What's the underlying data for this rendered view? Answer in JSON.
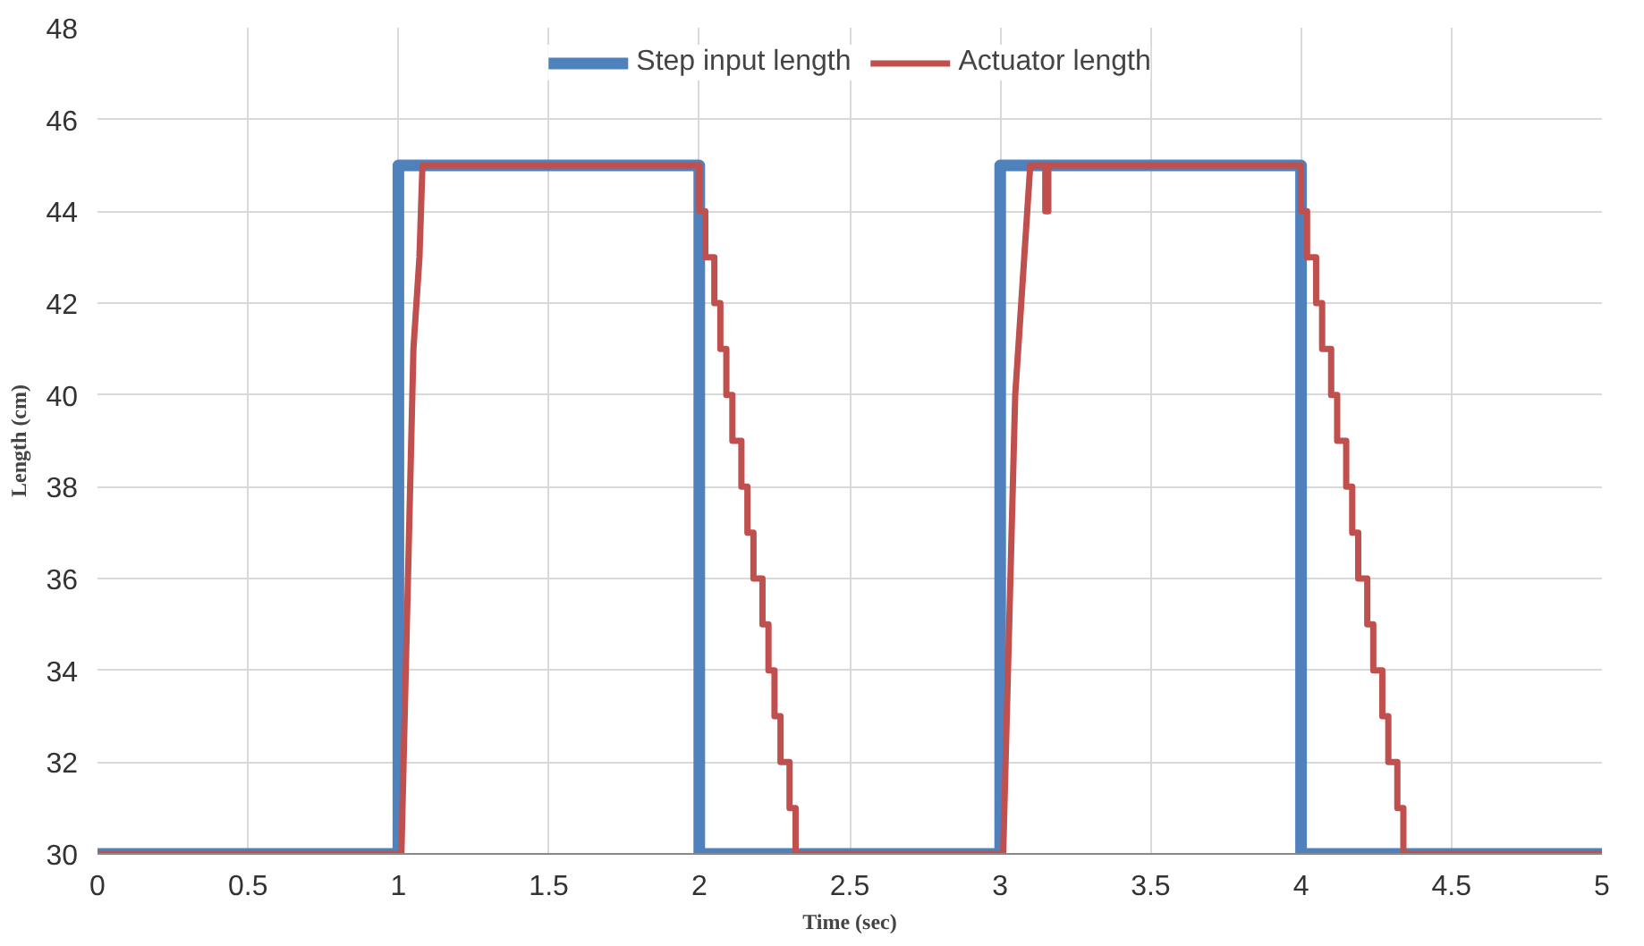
{
  "chart_data": {
    "type": "line",
    "xlabel": "Time (sec)",
    "ylabel": "Length (cm)",
    "xlim": [
      0,
      5
    ],
    "ylim": [
      30,
      48
    ],
    "xticks": [
      0,
      {
        "value": 0.5,
        "label": "0.5"
      },
      1,
      {
        "value": 1.5,
        "label": "1.5"
      },
      2,
      {
        "value": 2.5,
        "label": "2.5"
      },
      3,
      {
        "value": 3.5,
        "label": "3.5"
      },
      4,
      {
        "value": 4.5,
        "label": "4.5"
      },
      5
    ],
    "yticks": [
      30,
      32,
      34,
      36,
      38,
      40,
      42,
      44,
      46,
      48
    ],
    "grid": true,
    "legend": "top",
    "marker": "none",
    "line_style": "solid",
    "series": [
      {
        "name": "Step input length",
        "color": "#4f81bd",
        "x": [
          0,
          1,
          1,
          2,
          2,
          3,
          3,
          4,
          4,
          5
        ],
        "values": [
          30,
          30,
          45,
          45,
          30,
          30,
          45,
          45,
          30,
          30
        ]
      },
      {
        "name": "Actuator length",
        "color": "#c0504d",
        "x": [
          0,
          1.01,
          1.05,
          1.07,
          1.08,
          2.0,
          2.0,
          2.02,
          2.02,
          2.05,
          2.05,
          2.07,
          2.07,
          2.09,
          2.09,
          2.11,
          2.11,
          2.14,
          2.14,
          2.16,
          2.16,
          2.18,
          2.18,
          2.21,
          2.21,
          2.23,
          2.23,
          2.25,
          2.25,
          2.27,
          2.27,
          2.3,
          2.3,
          2.32,
          2.32,
          3.01,
          3.05,
          3.08,
          3.09,
          3.1,
          3.15,
          3.15,
          3.16,
          3.16,
          4.0,
          4.0,
          4.02,
          4.02,
          4.05,
          4.05,
          4.07,
          4.07,
          4.1,
          4.1,
          4.12,
          4.12,
          4.15,
          4.15,
          4.17,
          4.17,
          4.19,
          4.19,
          4.22,
          4.22,
          4.24,
          4.24,
          4.27,
          4.27,
          4.29,
          4.29,
          4.32,
          4.32,
          4.34,
          4.34,
          5
        ],
        "values": [
          30,
          30,
          41,
          43,
          45,
          45,
          44,
          44,
          43,
          43,
          42,
          42,
          41,
          41,
          40,
          40,
          39,
          39,
          38,
          38,
          37,
          37,
          36,
          36,
          35,
          35,
          34,
          34,
          33,
          33,
          32,
          32,
          31,
          31,
          30,
          30,
          40,
          43,
          44,
          45,
          45,
          44,
          44,
          45,
          45,
          44,
          44,
          43,
          43,
          42,
          42,
          41,
          41,
          40,
          40,
          39,
          39,
          38,
          38,
          37,
          37,
          36,
          36,
          35,
          35,
          34,
          34,
          33,
          33,
          32,
          32,
          31,
          31,
          30,
          30
        ]
      }
    ]
  }
}
